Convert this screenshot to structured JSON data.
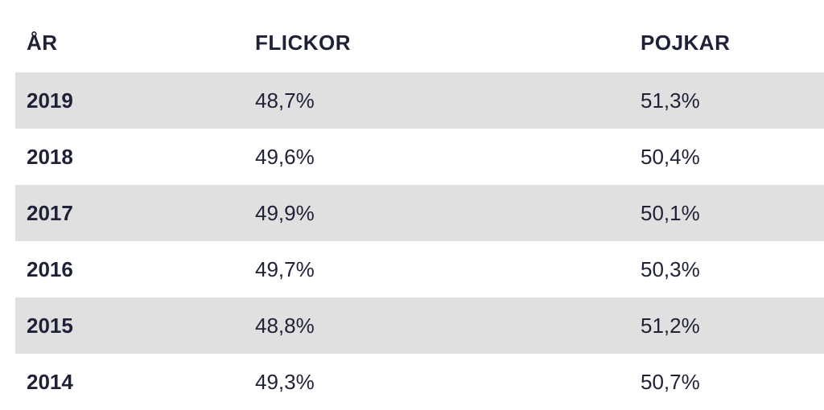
{
  "table": {
    "headers": {
      "year": "ÅR",
      "girls": "FLICKOR",
      "boys": "POJKAR"
    },
    "rows": [
      {
        "year": "2019",
        "girls": "48,7%",
        "boys": "51,3%",
        "shaded": true
      },
      {
        "year": "2018",
        "girls": "49,6%",
        "boys": "50,4%",
        "shaded": false
      },
      {
        "year": "2017",
        "girls": "49,9%",
        "boys": "50,1%",
        "shaded": true
      },
      {
        "year": "2016",
        "girls": "49,7%",
        "boys": "50,3%",
        "shaded": false
      },
      {
        "year": "2015",
        "girls": "48,8%",
        "boys": "51,2%",
        "shaded": true
      },
      {
        "year": "2014",
        "girls": "49,3%",
        "boys": "50,7%",
        "shaded": false
      }
    ]
  },
  "colors": {
    "text": "#1f2137",
    "row_shade": "#e0e0e0",
    "background": "#ffffff"
  }
}
